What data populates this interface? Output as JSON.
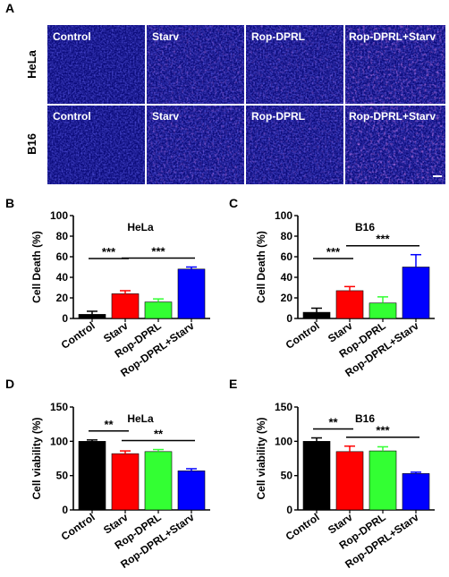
{
  "panel_letters": [
    "A",
    "B",
    "C",
    "D",
    "E"
  ],
  "micrographs": {
    "rows": [
      "HeLa",
      "B16"
    ],
    "conditions": [
      "Control",
      "Starv",
      "Rop-DPRL",
      "Rop-DPRL+Starv"
    ],
    "colors": {
      "background": "#0b0b7a",
      "nuclei": "#3a3aff",
      "death_stain": "#ff40ff"
    },
    "scale_bar_color": "#ffffff"
  },
  "series_colors": [
    "#000000",
    "#ff0000",
    "#33ff33",
    "#0000ff"
  ],
  "chart_data": [
    {
      "type": "bar",
      "panel": "B",
      "title": "HeLa",
      "ylabel": "Cell Death (%)",
      "xlabel": "",
      "categories": [
        "Control",
        "Starv",
        "Rop-DPRL",
        "Rop-DPRL+Starv"
      ],
      "values": [
        4,
        24,
        16,
        48
      ],
      "errors": [
        3,
        3,
        3,
        2
      ],
      "ylim": [
        0,
        100
      ],
      "yticks": [
        0,
        20,
        40,
        60,
        80,
        100
      ],
      "significance": [
        {
          "from": 0,
          "to": 1,
          "label": "***"
        },
        {
          "from": 1,
          "to": 3,
          "label": "***"
        }
      ]
    },
    {
      "type": "bar",
      "panel": "C",
      "title": "B16",
      "ylabel": "Cell Death (%)",
      "xlabel": "",
      "categories": [
        "Control",
        "Starv",
        "Rop-DPRL",
        "Rop-DPRL+Starv"
      ],
      "values": [
        6,
        27,
        15,
        50
      ],
      "errors": [
        4,
        4,
        6,
        12
      ],
      "ylim": [
        0,
        100
      ],
      "yticks": [
        0,
        20,
        40,
        60,
        80,
        100
      ],
      "significance": [
        {
          "from": 0,
          "to": 1,
          "label": "***"
        },
        {
          "from": 1,
          "to": 3,
          "label": "***"
        }
      ]
    },
    {
      "type": "bar",
      "panel": "D",
      "title": "HeLa",
      "ylabel": "Cell viability (%)",
      "xlabel": "",
      "categories": [
        "Control",
        "Starv",
        "Rop-DPRL",
        "Rop-DPRL+Starv"
      ],
      "values": [
        100,
        82,
        85,
        57
      ],
      "errors": [
        2,
        4,
        3,
        3
      ],
      "ylim": [
        0,
        150
      ],
      "yticks": [
        0,
        50,
        100,
        150
      ],
      "significance": [
        {
          "from": 0,
          "to": 1,
          "label": "**"
        },
        {
          "from": 1,
          "to": 3,
          "label": "**"
        }
      ]
    },
    {
      "type": "bar",
      "panel": "E",
      "title": "B16",
      "ylabel": "Cell viability (%)",
      "xlabel": "",
      "categories": [
        "Control",
        "Starv",
        "Rop-DPRL",
        "Rop-DPRL+Starv"
      ],
      "values": [
        100,
        85,
        86,
        53
      ],
      "errors": [
        5,
        8,
        6,
        2
      ],
      "ylim": [
        0,
        150
      ],
      "yticks": [
        0,
        50,
        100,
        150
      ],
      "significance": [
        {
          "from": 0,
          "to": 1,
          "label": "**"
        },
        {
          "from": 1,
          "to": 3,
          "label": "***"
        }
      ]
    }
  ]
}
